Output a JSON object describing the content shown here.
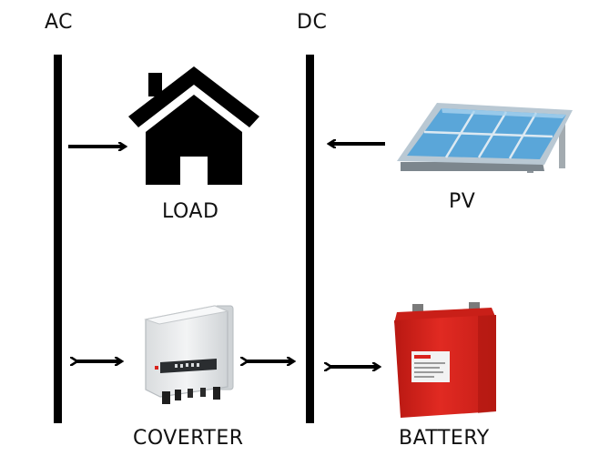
{
  "buses": {
    "ac_label": "AC",
    "dc_label": "DC"
  },
  "components": {
    "load_label": "LOAD",
    "pv_label": "PV",
    "converter_label": "COVERTER",
    "battery_label": "BATTERY"
  },
  "colors": {
    "bus": "#000000",
    "battery_red": "#d9231d",
    "panel_blue": "#6fb2e0",
    "converter_body": "#e9ebec"
  },
  "icons": {
    "load": "house-icon",
    "pv": "solar-panel-icon",
    "converter": "inverter-icon",
    "battery": "battery-icon"
  }
}
